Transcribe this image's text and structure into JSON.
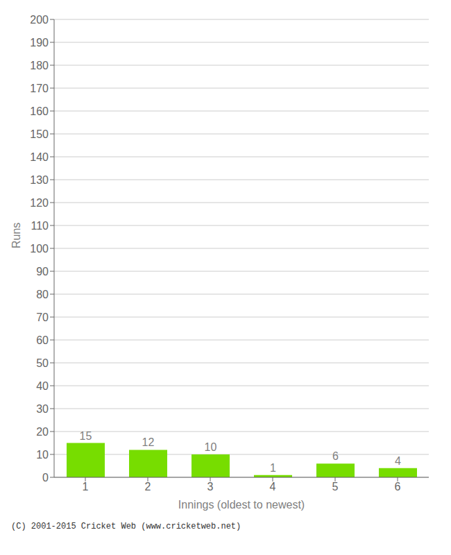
{
  "chart_data": {
    "type": "bar",
    "categories": [
      "1",
      "2",
      "3",
      "4",
      "5",
      "6"
    ],
    "values": [
      15,
      12,
      10,
      1,
      6,
      4
    ],
    "color": "#77dd00",
    "xlabel": "Innings (oldest to newest)",
    "ylabel": "Runs",
    "ylim": [
      0,
      200
    ],
    "yticks": [
      0,
      10,
      20,
      30,
      40,
      50,
      60,
      70,
      80,
      90,
      100,
      110,
      120,
      130,
      140,
      150,
      160,
      170,
      180,
      190,
      200
    ],
    "grid": true,
    "data_labels": true,
    "annotations": [
      "(C) 2001-2015 Cricket Web (www.cricketweb.net)"
    ]
  }
}
